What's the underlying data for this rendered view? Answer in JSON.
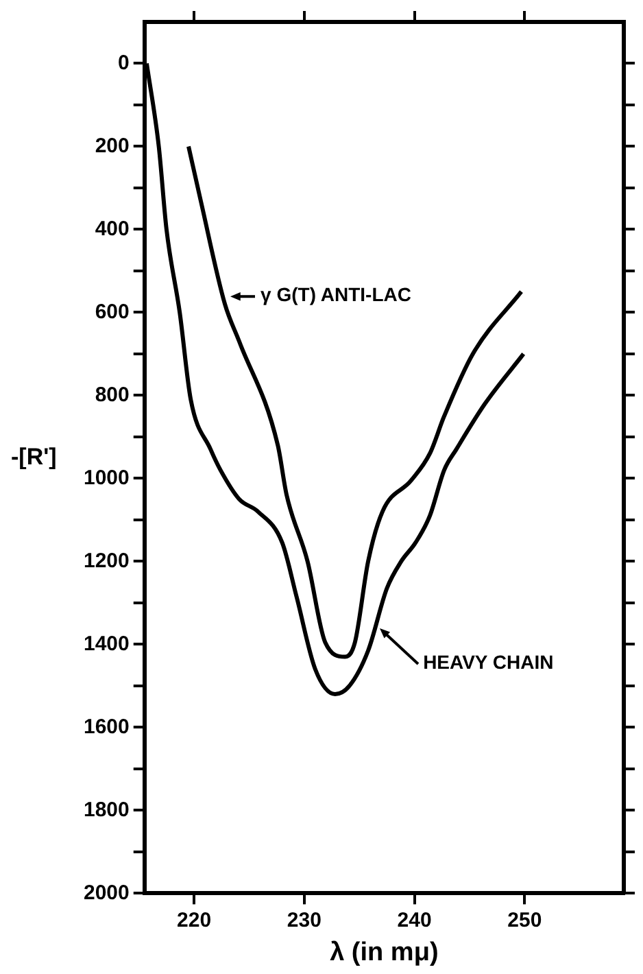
{
  "chart_data": {
    "type": "line",
    "xlabel": "λ (in mμ)",
    "ylabel": "-[R']",
    "xlim": [
      215.5,
      259
    ],
    "xticks": [
      220,
      230,
      240,
      250
    ],
    "ylim": [
      2000,
      -100
    ],
    "yticks": [
      0,
      {
        "value": 100,
        "label": null
      },
      200,
      {
        "value": 300,
        "label": null
      },
      400,
      {
        "value": 500,
        "label": null
      },
      600,
      {
        "value": 700,
        "label": null
      },
      800,
      {
        "value": 900,
        "label": null
      },
      1000,
      {
        "value": 1100,
        "label": null
      },
      1200,
      {
        "value": 1300,
        "label": null
      },
      1400,
      {
        "value": 1500,
        "label": null
      },
      1600,
      {
        "value": 1700,
        "label": null
      },
      1800,
      {
        "value": 1900,
        "label": null
      },
      2000
    ],
    "grid": false,
    "legend": false,
    "line_style": "solid",
    "marker": "none",
    "series": [
      {
        "color": "#000000",
        "x": [
          215.7,
          216.8,
          217.5,
          218.7,
          219.7,
          221.5,
          222.4,
          224.1,
          225.8,
          228,
          229.3,
          231,
          232.8,
          234.1,
          235.8,
          237.5,
          238.8,
          240.1,
          241.4,
          242.7,
          243.8,
          246.4,
          249.9
        ],
        "values": [
          0,
          200,
          400,
          600,
          810,
          930,
          980,
          1050,
          1080,
          1155,
          1285,
          1460,
          1520,
          1500,
          1415,
          1265,
          1200,
          1155,
          1090,
          980,
          930,
          820,
          700
        ]
      },
      {
        "color": "#000000",
        "x": [
          219.5,
          220.6,
          222.8,
          224.1,
          227.6,
          228.4,
          230.3,
          231.9,
          233.7,
          234.6,
          235.8,
          237.1,
          239.7,
          241.4,
          242.7,
          245.3,
          249.7
        ],
        "values": [
          200,
          330,
          580,
          670,
          920,
          1040,
          1200,
          1395,
          1430,
          1395,
          1200,
          1080,
          1005,
          940,
          850,
          700,
          550
        ]
      }
    ],
    "annotations": [
      {
        "text": "γ G(T) ANTI-LAC",
        "x": 223.3,
        "y": 560
      },
      {
        "text": "HEAVY CHAIN",
        "x": 236.8,
        "y": 1360
      }
    ]
  }
}
